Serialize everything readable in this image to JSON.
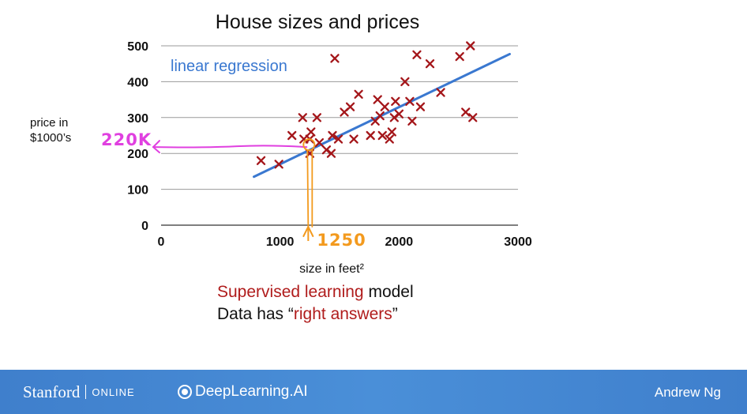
{
  "chart_data": {
    "type": "scatter",
    "title": "House sizes and prices",
    "xlabel": "size in feet²",
    "ylabel": [
      "price in",
      "$1000’s"
    ],
    "xlim": [
      0,
      3000
    ],
    "ylim": [
      0,
      500
    ],
    "x_ticks": [
      "0",
      "1000",
      "2000",
      "3000"
    ],
    "y_ticks": [
      "0",
      "100",
      "200",
      "300",
      "400",
      "500"
    ],
    "grid": "horizontal",
    "points": [
      [
        840,
        180
      ],
      [
        990,
        170
      ],
      [
        1100,
        250
      ],
      [
        1190,
        300
      ],
      [
        1200,
        240
      ],
      [
        1250,
        200
      ],
      [
        1250,
        240
      ],
      [
        1260,
        260
      ],
      [
        1310,
        300
      ],
      [
        1330,
        230
      ],
      [
        1390,
        210
      ],
      [
        1430,
        200
      ],
      [
        1440,
        250
      ],
      [
        1460,
        465
      ],
      [
        1490,
        240
      ],
      [
        1540,
        315
      ],
      [
        1590,
        330
      ],
      [
        1620,
        240
      ],
      [
        1660,
        365
      ],
      [
        1760,
        250
      ],
      [
        1800,
        290
      ],
      [
        1820,
        350
      ],
      [
        1840,
        305
      ],
      [
        1860,
        250
      ],
      [
        1880,
        330
      ],
      [
        1920,
        240
      ],
      [
        1940,
        260
      ],
      [
        1960,
        300
      ],
      [
        1970,
        345
      ],
      [
        2000,
        310
      ],
      [
        2050,
        400
      ],
      [
        2090,
        345
      ],
      [
        2110,
        290
      ],
      [
        2150,
        475
      ],
      [
        2180,
        330
      ],
      [
        2260,
        450
      ],
      [
        2350,
        370
      ],
      [
        2510,
        470
      ],
      [
        2560,
        315
      ],
      [
        2600,
        500
      ],
      [
        2620,
        300
      ]
    ],
    "fit_line": {
      "label": "linear regression",
      "x": [
        780,
        2930
      ],
      "y": [
        135,
        477
      ]
    },
    "annotation": {
      "x_value": 1250,
      "y_value": 220,
      "x_text": "1250",
      "y_text": "220K"
    }
  },
  "caption": {
    "line1_red": "Supervised learning",
    "line1_rest": " model",
    "line2_pre": "Data has “",
    "line2_red": "right answers",
    "line2_post": "”"
  },
  "footer": {
    "stanford": "Stanford",
    "online": "ONLINE",
    "deeplearning": "DeepLearning.AI",
    "author": "Andrew Ng"
  },
  "colors": {
    "marker": "#a4161a",
    "fit_line": "#3a78d0",
    "horizontal_annotation": "#e040e0",
    "vertical_annotation": "#f39a1e",
    "footer": "#4a8fd8"
  }
}
